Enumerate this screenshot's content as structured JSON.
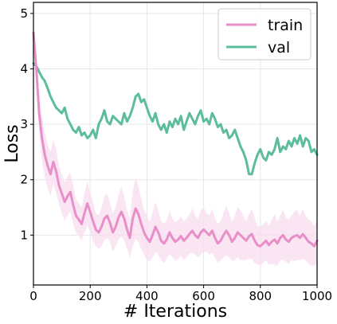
{
  "chart_data": {
    "type": "line",
    "xlabel": "# Iterations",
    "ylabel": "Loss",
    "xlim": [
      0,
      1000
    ],
    "ylim": [
      0.1,
      5.2
    ],
    "xticks": [
      0,
      200,
      400,
      600,
      800,
      1000
    ],
    "yticks": [
      1,
      2,
      3,
      4,
      5
    ],
    "grid": true,
    "legend_position": "top-right",
    "series": [
      {
        "name": "train",
        "color": "#e88fc9",
        "band_color": "#f8dcef",
        "x": [
          0,
          10,
          20,
          30,
          40,
          50,
          60,
          70,
          80,
          90,
          100,
          110,
          120,
          130,
          140,
          150,
          160,
          170,
          180,
          190,
          200,
          210,
          220,
          230,
          240,
          250,
          260,
          270,
          280,
          290,
          300,
          310,
          320,
          330,
          340,
          350,
          360,
          370,
          380,
          390,
          400,
          410,
          420,
          430,
          440,
          450,
          460,
          470,
          480,
          490,
          500,
          510,
          520,
          530,
          540,
          550,
          560,
          570,
          580,
          590,
          600,
          610,
          620,
          630,
          640,
          650,
          660,
          670,
          680,
          690,
          700,
          710,
          720,
          730,
          740,
          750,
          760,
          770,
          780,
          790,
          800,
          810,
          820,
          830,
          840,
          850,
          860,
          870,
          880,
          890,
          900,
          910,
          920,
          930,
          940,
          950,
          960,
          970,
          980,
          990,
          1000
        ],
        "values": [
          4.65,
          4.0,
          3.2,
          2.75,
          2.45,
          2.25,
          2.1,
          2.32,
          2.15,
          1.9,
          1.75,
          1.6,
          1.7,
          1.78,
          1.55,
          1.35,
          1.28,
          1.2,
          1.4,
          1.57,
          1.42,
          1.25,
          1.1,
          1.05,
          1.15,
          1.3,
          1.35,
          1.22,
          1.05,
          1.15,
          1.32,
          1.42,
          1.3,
          1.1,
          0.95,
          1.3,
          1.48,
          1.38,
          1.2,
          1.05,
          0.95,
          0.88,
          1.0,
          1.15,
          1.05,
          0.9,
          0.85,
          0.92,
          1.05,
          0.95,
          0.88,
          0.92,
          0.98,
          0.9,
          0.95,
          1.02,
          1.08,
          1.0,
          0.95,
          1.05,
          1.1,
          1.05,
          1.0,
          1.08,
          0.95,
          0.85,
          0.9,
          1.0,
          1.08,
          1.0,
          0.88,
          0.95,
          1.05,
          1.0,
          0.95,
          0.9,
          0.98,
          1.02,
          0.9,
          0.82,
          0.8,
          0.85,
          0.9,
          0.82,
          0.88,
          0.92,
          0.85,
          0.95,
          1.0,
          0.92,
          0.88,
          0.95,
          0.98,
          1.0,
          0.95,
          1.02,
          0.95,
          0.88,
          0.85,
          0.8,
          0.9
        ],
        "band_halfwidth": [
          0.05,
          0.25,
          0.35,
          0.4,
          0.4,
          0.4,
          0.4,
          0.4,
          0.4,
          0.35,
          0.35,
          0.35,
          0.35,
          0.35,
          0.35,
          0.3,
          0.3,
          0.3,
          0.35,
          0.4,
          0.35,
          0.35,
          0.3,
          0.3,
          0.35,
          0.4,
          0.4,
          0.35,
          0.35,
          0.35,
          0.4,
          0.45,
          0.4,
          0.35,
          0.35,
          0.5,
          0.55,
          0.5,
          0.45,
          0.4,
          0.4,
          0.35,
          0.4,
          0.45,
          0.4,
          0.35,
          0.35,
          0.35,
          0.4,
          0.35,
          0.35,
          0.35,
          0.35,
          0.35,
          0.35,
          0.35,
          0.4,
          0.35,
          0.35,
          0.4,
          0.4,
          0.35,
          0.35,
          0.4,
          0.35,
          0.35,
          0.35,
          0.4,
          0.45,
          0.4,
          0.35,
          0.4,
          0.45,
          0.45,
          0.4,
          0.35,
          0.4,
          0.45,
          0.4,
          0.35,
          0.35,
          0.35,
          0.35,
          0.35,
          0.4,
          0.45,
          0.4,
          0.4,
          0.45,
          0.4,
          0.4,
          0.4,
          0.45,
          0.45,
          0.4,
          0.45,
          0.4,
          0.4,
          0.4,
          0.35,
          0.4
        ]
      },
      {
        "name": "val",
        "color": "#5cbd9a",
        "x": [
          0,
          10,
          20,
          30,
          40,
          50,
          60,
          70,
          80,
          90,
          100,
          110,
          120,
          130,
          140,
          150,
          160,
          170,
          180,
          190,
          200,
          210,
          220,
          230,
          240,
          250,
          260,
          270,
          280,
          290,
          300,
          310,
          320,
          330,
          340,
          350,
          360,
          370,
          380,
          390,
          400,
          410,
          420,
          430,
          440,
          450,
          460,
          470,
          480,
          490,
          500,
          510,
          520,
          530,
          540,
          550,
          560,
          570,
          580,
          590,
          600,
          610,
          620,
          630,
          640,
          650,
          660,
          670,
          680,
          690,
          700,
          710,
          720,
          730,
          740,
          750,
          760,
          770,
          780,
          790,
          800,
          810,
          820,
          830,
          840,
          850,
          860,
          870,
          880,
          890,
          900,
          910,
          920,
          930,
          940,
          950,
          960,
          970,
          980,
          990,
          1000
        ],
        "values": [
          4.1,
          4.05,
          3.95,
          3.85,
          3.78,
          3.65,
          3.5,
          3.4,
          3.3,
          3.25,
          3.2,
          3.3,
          3.1,
          3.0,
          2.9,
          2.85,
          2.95,
          2.8,
          2.85,
          2.75,
          2.8,
          2.9,
          2.75,
          3.0,
          3.1,
          3.25,
          3.05,
          3.0,
          3.15,
          3.1,
          3.05,
          3.0,
          3.2,
          3.05,
          3.15,
          3.3,
          3.5,
          3.55,
          3.4,
          3.45,
          3.3,
          3.15,
          3.05,
          3.2,
          3.0,
          2.9,
          3.0,
          2.85,
          3.05,
          2.95,
          3.1,
          3.0,
          3.15,
          2.9,
          3.05,
          3.2,
          3.1,
          3.0,
          3.15,
          3.25,
          3.05,
          3.1,
          3.0,
          3.2,
          3.1,
          2.95,
          3.0,
          2.85,
          2.9,
          2.75,
          2.8,
          2.9,
          2.75,
          2.6,
          2.5,
          2.35,
          2.1,
          2.1,
          2.3,
          2.45,
          2.55,
          2.4,
          2.35,
          2.5,
          2.45,
          2.55,
          2.75,
          2.5,
          2.6,
          2.55,
          2.7,
          2.6,
          2.75,
          2.65,
          2.8,
          2.6,
          2.75,
          2.7,
          2.5,
          2.55,
          2.45
        ]
      }
    ]
  }
}
